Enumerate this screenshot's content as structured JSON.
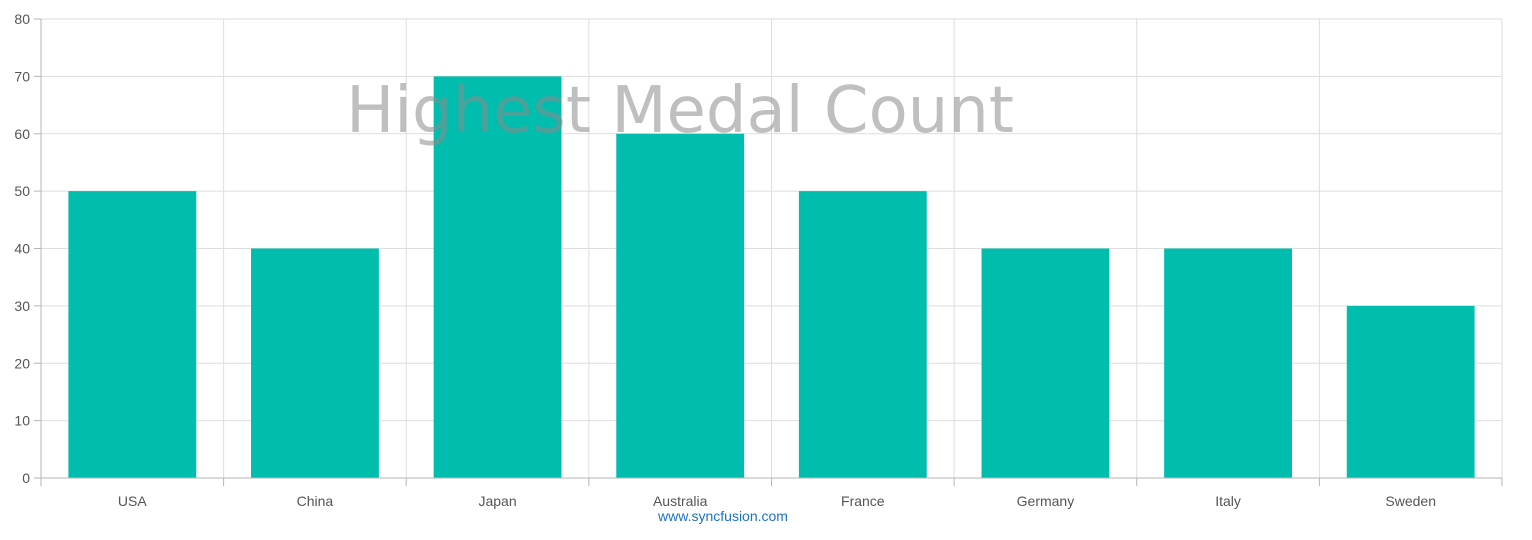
{
  "colors": {
    "bar": "#00BDAE",
    "grid": "#DEDEDE",
    "axis_line": "#B5B5B5",
    "tick_text": "#555555",
    "title": "#8A8A8A",
    "link": "#1A73C9"
  },
  "chart_data": {
    "type": "bar",
    "title": "Highest Medal Count",
    "xlabel": "",
    "ylabel": "",
    "categories": [
      "USA",
      "China",
      "Japan",
      "Australia",
      "France",
      "Germany",
      "Italy",
      "Sweden"
    ],
    "values": [
      50,
      40,
      70,
      60,
      50,
      40,
      40,
      30
    ],
    "ylim": [
      0,
      80
    ],
    "y_ticks": [
      "0",
      "10",
      "20",
      "30",
      "40",
      "50",
      "60",
      "70",
      "80"
    ],
    "grid": true,
    "legend": "none"
  },
  "footer": {
    "link_text": "www.syncfusion.com"
  }
}
